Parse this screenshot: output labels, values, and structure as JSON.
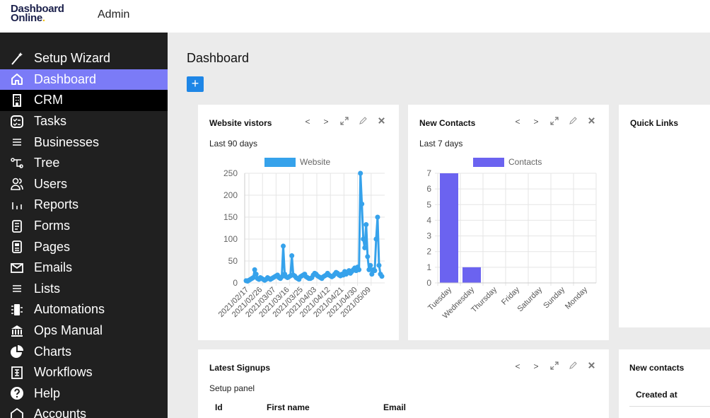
{
  "app": {
    "logo_line1": "Dashboard",
    "logo_line2": "Online",
    "logo_dot": ".",
    "account": "Admin"
  },
  "sidebar": {
    "items": [
      {
        "label": "Setup Wizard",
        "icon": "magic-wand-icon"
      },
      {
        "label": "Dashboard",
        "icon": "home-icon",
        "state": "active"
      },
      {
        "label": "CRM",
        "icon": "building-icon",
        "state": "selected"
      },
      {
        "label": "Tasks",
        "icon": "checklist-icon"
      },
      {
        "label": "Businesses",
        "icon": "list-icon"
      },
      {
        "label": "Tree",
        "icon": "tree-icon"
      },
      {
        "label": "Users",
        "icon": "users-icon"
      },
      {
        "label": "Reports",
        "icon": "bar-chart-icon"
      },
      {
        "label": "Forms",
        "icon": "form-icon"
      },
      {
        "label": "Pages",
        "icon": "page-icon"
      },
      {
        "label": "Emails",
        "icon": "mail-icon"
      },
      {
        "label": "Lists",
        "icon": "list-icon"
      },
      {
        "label": "Automations",
        "icon": "automation-icon"
      },
      {
        "label": "Ops Manual",
        "icon": "bank-icon"
      },
      {
        "label": "Charts",
        "icon": "pie-chart-icon"
      },
      {
        "label": "Workflows",
        "icon": "workflow-building-icon"
      },
      {
        "label": "Help",
        "icon": "help-icon"
      },
      {
        "label": "Accounts",
        "icon": "accounts-icon"
      }
    ],
    "colors": {
      "background": "#202020",
      "active": "#7b7bf7",
      "selected": "#000000"
    }
  },
  "main": {
    "title": "Dashboard",
    "add_button": "+"
  },
  "widget_controls": {
    "prev": "<",
    "next": ">",
    "expand": "expand-icon",
    "edit": "pencil-icon",
    "close": "close-icon"
  },
  "cards": {
    "visitors": {
      "title": "Website vistors",
      "subtitle": "Last 90 days"
    },
    "contacts": {
      "title": "New Contacts",
      "subtitle": "Last 7 days"
    },
    "quicklinks": {
      "title": "Quick Links"
    },
    "signups": {
      "title": "Latest Signups",
      "subtitle": "Setup panel",
      "columns": [
        "Id",
        "First name",
        "Email"
      ]
    },
    "newcontacts": {
      "title": "New contacts",
      "columns": [
        "Created at"
      ]
    }
  },
  "chart_data": [
    {
      "type": "line",
      "legend": [
        "Website"
      ],
      "legend_placement": "top",
      "color": "#36a2eb",
      "ylim": [
        0,
        250
      ],
      "yticks": [
        0,
        50,
        100,
        150,
        200,
        250
      ],
      "xticks": [
        "2021/02/17",
        "2021/02/26",
        "2021/03/07",
        "2021/03/16",
        "2021/03/25",
        "2021/04/03",
        "2021/04/12",
        "2021/04/21",
        "2021/04/30",
        "2021/05/09"
      ],
      "grid": true,
      "series": [
        {
          "name": "Website",
          "values": [
            5,
            4,
            6,
            8,
            10,
            12,
            30,
            20,
            10,
            8,
            12,
            10,
            8,
            6,
            8,
            12,
            10,
            8,
            10,
            12,
            14,
            16,
            18,
            12,
            10,
            14,
            84,
            20,
            14,
            12,
            14,
            16,
            62,
            18,
            16,
            12,
            10,
            8,
            14,
            16,
            18,
            20,
            14,
            12,
            10,
            10,
            12,
            18,
            22,
            20,
            16,
            14,
            12,
            10,
            14,
            16,
            18,
            22,
            18,
            16,
            14,
            16,
            20,
            24,
            22,
            18,
            16,
            20,
            18,
            26,
            20,
            24,
            28,
            22,
            26,
            30,
            34,
            28,
            36,
            30,
            250,
            180,
            100,
            80,
            133,
            60,
            30,
            40,
            20,
            30,
            28,
            100,
            150,
            40,
            20,
            15
          ]
        }
      ]
    },
    {
      "type": "bar",
      "legend": [
        "Contacts"
      ],
      "legend_placement": "top",
      "color": "#6b63f0",
      "categories": [
        "Tuesday",
        "Wednesday",
        "Thursday",
        "Friday",
        "Saturday",
        "Sunday",
        "Monday"
      ],
      "ylim": [
        0,
        7
      ],
      "yticks": [
        0,
        1,
        2,
        3,
        4,
        5,
        6,
        7
      ],
      "grid": true,
      "series": [
        {
          "name": "Contacts",
          "values": [
            7,
            1,
            0,
            0,
            0,
            0,
            0
          ]
        }
      ]
    }
  ]
}
